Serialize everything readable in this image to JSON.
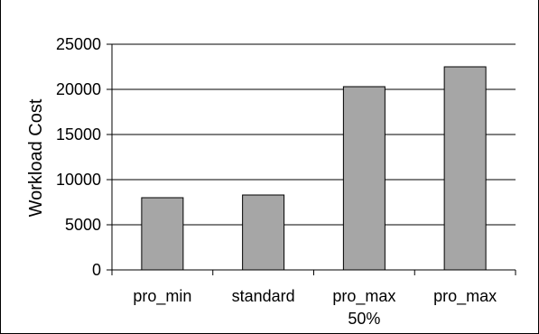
{
  "chart_data": {
    "type": "bar",
    "categories": [
      "pro_min",
      "standard",
      "pro_max\n50%",
      "pro_max"
    ],
    "category_lines": [
      [
        "pro_min"
      ],
      [
        "standard"
      ],
      [
        "pro_max",
        "50%"
      ],
      [
        "pro_max"
      ]
    ],
    "values": [
      8000,
      8300,
      20300,
      22500
    ],
    "title": "",
    "xlabel": "",
    "ylabel": "Workload Cost",
    "ylim": [
      0,
      25000
    ],
    "yticks": [
      0,
      5000,
      10000,
      15000,
      20000,
      25000
    ],
    "grid": true,
    "legend": "none",
    "colors": {
      "bar": "#a6a6a6",
      "bar_stroke": "#000000",
      "grid": "#000000",
      "axis": "#000000"
    }
  }
}
